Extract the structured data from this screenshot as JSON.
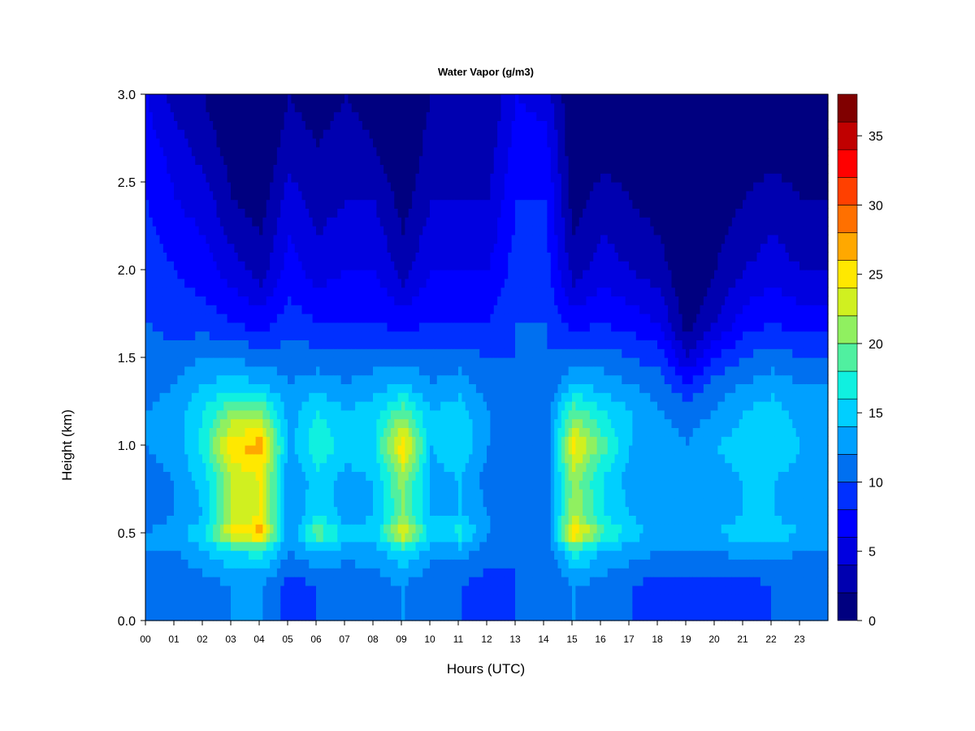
{
  "chart_data": {
    "type": "heatmap",
    "title": "Water Vapor (g/m3)",
    "xlabel": "Hours (UTC)",
    "ylabel": "Height (km)",
    "xlim": [
      0,
      24
    ],
    "ylim": [
      0.0,
      3.0
    ],
    "x_tick_labels": [
      "00",
      "01",
      "02",
      "03",
      "04",
      "05",
      "06",
      "07",
      "08",
      "09",
      "10",
      "11",
      "12",
      "13",
      "14",
      "15",
      "16",
      "17",
      "18",
      "19",
      "20",
      "21",
      "22",
      "23"
    ],
    "y_tick_labels": [
      "0.0",
      "0.5",
      "1.0",
      "1.5",
      "2.0",
      "2.5",
      "3.0"
    ],
    "y_ticks": [
      0.0,
      0.5,
      1.0,
      1.5,
      2.0,
      2.5,
      3.0
    ],
    "colorbar": {
      "range": [
        0,
        36
      ],
      "step": 2,
      "tick_values": [
        0,
        5,
        10,
        15,
        20,
        25,
        30,
        35
      ],
      "tick_labels": [
        "0",
        "5",
        "10",
        "15",
        "20",
        "25",
        "30",
        "35"
      ],
      "colors": [
        "#000080",
        "#0000B0",
        "#0000E0",
        "#0000FF",
        "#0030FF",
        "#0070F0",
        "#00A0FF",
        "#00CFFF",
        "#10F0E0",
        "#50F0A0",
        "#90F060",
        "#D0F020",
        "#FFE800",
        "#FFA800",
        "#FF7000",
        "#FF4000",
        "#FF0000",
        "#C00000",
        "#800000"
      ]
    },
    "profile_heights_km": [
      0.0,
      0.2,
      0.4,
      0.5,
      0.6,
      0.8,
      1.0,
      1.2,
      1.35,
      1.5,
      1.7,
      2.0,
      2.4,
      2.7,
      3.0
    ],
    "hourly_profiles": [
      {
        "hour": "00",
        "values": [
          10,
          10,
          12,
          12,
          11,
          11,
          12,
          12,
          11,
          11,
          10,
          9,
          8,
          7,
          6
        ]
      },
      {
        "hour": "01",
        "values": [
          10,
          10,
          12,
          13,
          12,
          12,
          13,
          13,
          12,
          11,
          9,
          8,
          6,
          5,
          3
        ]
      },
      {
        "hour": "02",
        "values": [
          11,
          11,
          14,
          16,
          14,
          15,
          17,
          16,
          14,
          12,
          9,
          7,
          5,
          3,
          2
        ]
      },
      {
        "hour": "03",
        "values": [
          12,
          12,
          16,
          25,
          22,
          22,
          26,
          20,
          15,
          12,
          8,
          5,
          2,
          1,
          0
        ]
      },
      {
        "hour": "04",
        "values": [
          12,
          12,
          17,
          27,
          24,
          24,
          27,
          20,
          14,
          11,
          7,
          3,
          1,
          0,
          0
        ]
      },
      {
        "hour": "05",
        "values": [
          9,
          9,
          12,
          12,
          12,
          12,
          13,
          13,
          12,
          11,
          9,
          7,
          5,
          3,
          2
        ]
      },
      {
        "hour": "06",
        "values": [
          10,
          10,
          14,
          20,
          16,
          15,
          18,
          16,
          13,
          11,
          8,
          5,
          3,
          2,
          1
        ]
      },
      {
        "hour": "07",
        "values": [
          10,
          10,
          13,
          15,
          13,
          13,
          15,
          14,
          12,
          11,
          8,
          6,
          4,
          3,
          2
        ]
      },
      {
        "hour": "08",
        "values": [
          11,
          11,
          13,
          15,
          14,
          14,
          16,
          15,
          13,
          11,
          8,
          6,
          4,
          2,
          1
        ]
      },
      {
        "hour": "09",
        "values": [
          12,
          12,
          16,
          25,
          20,
          21,
          26,
          19,
          14,
          11,
          7,
          3,
          1,
          0,
          0
        ]
      },
      {
        "hour": "10",
        "values": [
          10,
          10,
          13,
          15,
          14,
          13,
          14,
          14,
          12,
          11,
          8,
          6,
          4,
          3,
          2
        ]
      },
      {
        "hour": "11",
        "values": [
          10,
          10,
          13,
          17,
          14,
          14,
          16,
          15,
          13,
          11,
          8,
          6,
          4,
          3,
          2
        ]
      },
      {
        "hour": "12",
        "values": [
          9,
          9,
          11,
          12,
          12,
          11,
          12,
          12,
          11,
          10,
          8,
          6,
          4,
          3,
          2
        ]
      },
      {
        "hour": "13",
        "values": [
          10,
          10,
          10,
          10,
          10,
          10,
          10,
          10,
          10,
          10,
          10,
          9,
          8,
          7,
          6
        ]
      },
      {
        "hour": "14",
        "values": [
          10,
          10,
          10,
          10,
          10,
          10,
          10,
          10,
          10,
          10,
          10,
          9,
          8,
          7,
          5
        ]
      },
      {
        "hour": "15",
        "values": [
          12,
          12,
          17,
          27,
          22,
          21,
          25,
          19,
          14,
          11,
          7,
          3,
          1,
          0,
          0
        ]
      },
      {
        "hour": "16",
        "values": [
          11,
          11,
          14,
          19,
          16,
          16,
          19,
          16,
          13,
          11,
          8,
          5,
          3,
          1,
          0
        ]
      },
      {
        "hour": "17",
        "values": [
          10,
          10,
          13,
          15,
          14,
          13,
          14,
          14,
          12,
          10,
          7,
          4,
          2,
          1,
          0
        ]
      },
      {
        "hour": "18",
        "values": [
          8,
          9,
          12,
          13,
          13,
          12,
          13,
          12,
          11,
          9,
          6,
          3,
          1,
          0,
          0
        ]
      },
      {
        "hour": "19",
        "values": [
          8,
          9,
          12,
          13,
          13,
          12,
          12,
          11,
          8,
          4,
          1,
          0,
          0,
          0,
          0
        ]
      },
      {
        "hour": "20",
        "values": [
          8,
          9,
          12,
          14,
          13,
          13,
          14,
          12,
          11,
          8,
          4,
          2,
          1,
          0,
          0
        ]
      },
      {
        "hour": "21",
        "values": [
          8,
          9,
          13,
          15,
          14,
          14,
          15,
          14,
          12,
          10,
          7,
          4,
          2,
          1,
          0
        ]
      },
      {
        "hour": "22",
        "values": [
          10,
          10,
          13,
          15,
          14,
          14,
          16,
          15,
          13,
          11,
          8,
          5,
          3,
          1,
          0
        ]
      },
      {
        "hour": "23",
        "values": [
          10,
          10,
          12,
          14,
          13,
          13,
          14,
          13,
          12,
          10,
          7,
          4,
          2,
          1,
          0
        ]
      }
    ]
  }
}
